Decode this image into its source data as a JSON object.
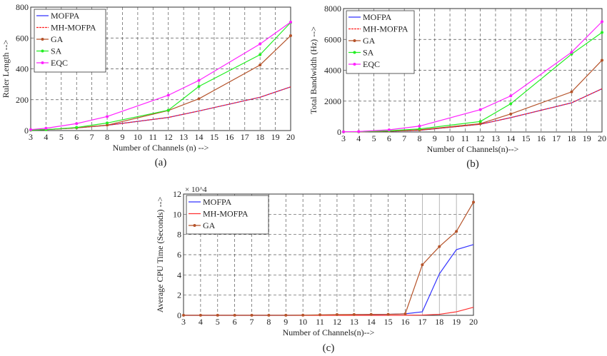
{
  "chart_data": [
    {
      "type": "line",
      "panel_label": "(a)",
      "xlabel": "Number of Channels (n) -->",
      "ylabel": "Ruler Length -->",
      "xlim": [
        3,
        20
      ],
      "ylim": [
        0,
        800
      ],
      "xticks": [
        3,
        4,
        5,
        6,
        7,
        8,
        9,
        10,
        11,
        12,
        13,
        14,
        15,
        16,
        17,
        18,
        19,
        20
      ],
      "yticks": [
        0,
        200,
        400,
        600,
        800
      ],
      "grid": true,
      "legend_placement": "top-left",
      "x": [
        3,
        4,
        6,
        8,
        12,
        14,
        18,
        20
      ],
      "series": [
        {
          "name": "MOFPA",
          "color": "#3333ff",
          "marker": "none",
          "values": [
            3,
            6,
            17,
            34,
            85,
            127,
            216,
            283
          ]
        },
        {
          "name": "MH-MOFPA",
          "color": "#ff2020",
          "marker": "none",
          "dash": true,
          "values": [
            3,
            6,
            17,
            34,
            85,
            127,
            216,
            283
          ]
        },
        {
          "name": "GA",
          "color": "#b5532a",
          "marker": "star",
          "values": [
            3,
            6,
            18,
            35,
            130,
            206,
            425,
            615
          ]
        },
        {
          "name": "SA",
          "color": "#22ee22",
          "marker": "dot",
          "values": [
            3,
            6,
            20,
            49,
            132,
            286,
            492,
            700
          ]
        },
        {
          "name": "EQC",
          "color": "#ff22ff",
          "marker": "star",
          "values": [
            6,
            15,
            45,
            91,
            229,
            325,
            561,
            703
          ]
        }
      ]
    },
    {
      "type": "line",
      "panel_label": "(b)",
      "xlabel": "Number of Channels(n)-->",
      "ylabel": "Total Bandwidth (Hz) -->",
      "xlim": [
        3,
        20
      ],
      "ylim": [
        0,
        8000
      ],
      "xticks": [
        3,
        4,
        5,
        6,
        7,
        8,
        9,
        10,
        11,
        12,
        13,
        14,
        15,
        16,
        17,
        18,
        19,
        20
      ],
      "yticks": [
        0,
        2000,
        4000,
        6000,
        8000
      ],
      "grid": true,
      "legend_placement": "top-left",
      "x": [
        3,
        4,
        6,
        8,
        12,
        14,
        18,
        20
      ],
      "series": [
        {
          "name": "MOFPA",
          "color": "#3333ff",
          "marker": "none",
          "values": [
            5,
            12,
            50,
            110,
            500,
            930,
            1890,
            2800
          ]
        },
        {
          "name": "MH-MOFPA",
          "color": "#ff2020",
          "marker": "none",
          "dash": true,
          "values": [
            5,
            12,
            50,
            110,
            500,
            930,
            1890,
            2800
          ]
        },
        {
          "name": "GA",
          "color": "#b5532a",
          "marker": "star",
          "values": [
            5,
            12,
            55,
            140,
            540,
            1170,
            2600,
            4650
          ]
        },
        {
          "name": "SA",
          "color": "#22ee22",
          "marker": "dot",
          "values": [
            5,
            15,
            80,
            200,
            680,
            1830,
            5050,
            6450
          ]
        },
        {
          "name": "EQC",
          "color": "#ff22ff",
          "marker": "star",
          "values": [
            10,
            30,
            140,
            380,
            1450,
            2340,
            5170,
            7150
          ]
        }
      ]
    },
    {
      "type": "line",
      "panel_label": "(c)",
      "xlabel": "Number of Channels(n)-->",
      "ylabel": "Average CPU Time (Seconds) -->",
      "y_multiplier": "× 10^4",
      "xlim": [
        3,
        20
      ],
      "ylim": [
        0,
        12
      ],
      "xticks": [
        3,
        4,
        5,
        6,
        7,
        8,
        9,
        10,
        11,
        12,
        13,
        14,
        15,
        16,
        17,
        18,
        19,
        20
      ],
      "yticks": [
        0,
        2,
        4,
        6,
        8,
        10,
        12
      ],
      "grid": true,
      "legend_placement": "top-left",
      "x": [
        3,
        4,
        5,
        6,
        7,
        8,
        9,
        10,
        11,
        12,
        13,
        14,
        15,
        16,
        17,
        18,
        19,
        20
      ],
      "series": [
        {
          "name": "MOFPA",
          "color": "#3333ff",
          "marker": "none",
          "values": [
            0,
            0,
            0,
            0,
            0,
            0,
            0,
            0.01,
            0.03,
            0.05,
            0.07,
            0.08,
            0.1,
            0.15,
            0.35,
            4.1,
            6.5,
            7.0
          ]
        },
        {
          "name": "MH-MOFPA",
          "color": "#ff3030",
          "marker": "none",
          "values": [
            0,
            0,
            0,
            0,
            0,
            0,
            0,
            0,
            0,
            0,
            0,
            0,
            0,
            0.01,
            0.03,
            0.1,
            0.35,
            0.8
          ]
        },
        {
          "name": "GA",
          "color": "#b5532a",
          "marker": "star",
          "values": [
            0.01,
            0.01,
            0.01,
            0.01,
            0.01,
            0.01,
            0.01,
            0.02,
            0.05,
            0.07,
            0.08,
            0.09,
            0.1,
            0.15,
            5.0,
            6.8,
            8.3,
            11.2
          ]
        }
      ]
    }
  ]
}
